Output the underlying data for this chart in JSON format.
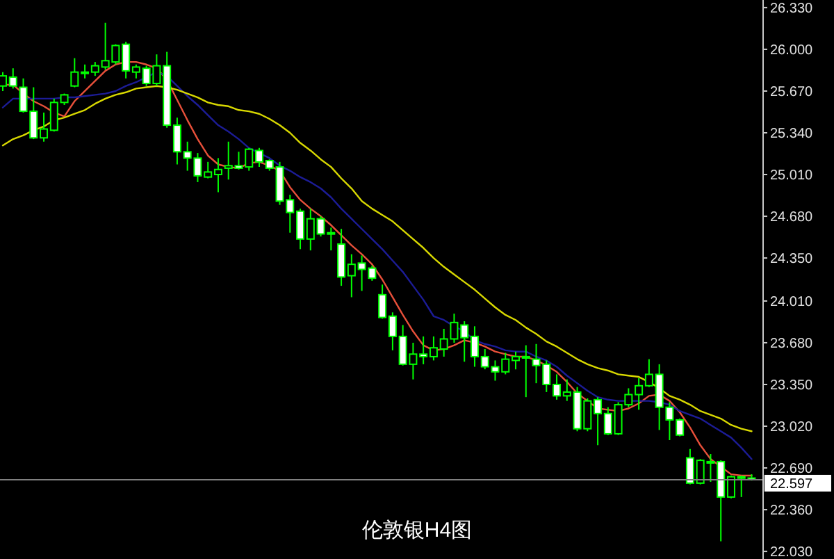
{
  "chart_data": {
    "type": "candlestick",
    "title": "伦敦银H4图",
    "categories": [
      null,
      null,
      null,
      null,
      null,
      null,
      null,
      null,
      null,
      null,
      null,
      null,
      null,
      null,
      null,
      null,
      null,
      null,
      null,
      null,
      null,
      null,
      null,
      null,
      null,
      null,
      null,
      null,
      null,
      null,
      null,
      null,
      null,
      null,
      null,
      null,
      null,
      null,
      null,
      null,
      null,
      null,
      null,
      null,
      null,
      null,
      null,
      null,
      null,
      null,
      null,
      null,
      null,
      null,
      null,
      null,
      null,
      null,
      null,
      null,
      null,
      null,
      null,
      null,
      null,
      null,
      null,
      null,
      null,
      null,
      null,
      null,
      null,
      null
    ],
    "ohlc": [
      [
        25.71,
        25.82,
        25.67,
        25.79
      ],
      [
        25.78,
        25.85,
        25.69,
        25.71
      ],
      [
        25.7,
        25.77,
        25.5,
        25.51
      ],
      [
        25.51,
        25.7,
        25.29,
        25.3
      ],
      [
        25.3,
        25.5,
        25.27,
        25.37
      ],
      [
        25.36,
        25.61,
        25.35,
        25.58
      ],
      [
        25.58,
        25.65,
        25.56,
        25.64
      ],
      [
        25.71,
        25.93,
        25.7,
        25.82
      ],
      [
        25.82,
        25.88,
        25.77,
        25.82
      ],
      [
        25.82,
        25.9,
        25.79,
        25.87
      ],
      [
        25.86,
        26.21,
        25.84,
        25.91
      ],
      [
        25.9,
        26.04,
        25.88,
        26.03
      ],
      [
        26.04,
        26.06,
        25.77,
        25.83
      ],
      [
        25.82,
        25.88,
        25.77,
        25.86
      ],
      [
        25.85,
        25.87,
        25.71,
        25.73
      ],
      [
        25.73,
        25.96,
        25.71,
        25.87
      ],
      [
        25.87,
        25.98,
        25.38,
        25.4
      ],
      [
        25.4,
        25.46,
        25.09,
        25.19
      ],
      [
        25.19,
        25.27,
        25.04,
        25.14
      ],
      [
        25.14,
        25.18,
        24.95,
        25.0
      ],
      [
        24.99,
        25.11,
        24.98,
        25.03
      ],
      [
        25.01,
        25.14,
        24.87,
        25.05
      ],
      [
        25.06,
        25.27,
        24.97,
        25.08
      ],
      [
        25.08,
        25.19,
        25.05,
        25.06
      ],
      [
        25.07,
        25.22,
        25.04,
        25.21
      ],
      [
        25.2,
        25.22,
        25.07,
        25.11
      ],
      [
        25.12,
        25.13,
        25.04,
        25.06
      ],
      [
        25.07,
        25.11,
        24.77,
        24.8
      ],
      [
        24.81,
        24.85,
        24.55,
        24.71
      ],
      [
        24.72,
        24.74,
        24.42,
        24.5
      ],
      [
        24.5,
        24.74,
        24.41,
        24.66
      ],
      [
        24.66,
        24.68,
        24.52,
        24.54
      ],
      [
        24.55,
        24.59,
        24.41,
        24.55
      ],
      [
        24.46,
        24.58,
        24.13,
        24.2
      ],
      [
        24.21,
        24.38,
        24.04,
        24.3
      ],
      [
        24.31,
        24.37,
        24.09,
        24.26
      ],
      [
        24.27,
        24.29,
        24.17,
        24.19
      ],
      [
        24.06,
        24.14,
        23.87,
        23.88
      ],
      [
        23.89,
        23.92,
        23.62,
        23.73
      ],
      [
        23.73,
        23.82,
        23.5,
        23.51
      ],
      [
        23.51,
        23.68,
        23.39,
        23.59
      ],
      [
        23.59,
        23.73,
        23.51,
        23.57
      ],
      [
        23.57,
        23.73,
        23.54,
        23.64
      ],
      [
        23.63,
        23.79,
        23.57,
        23.71
      ],
      [
        23.71,
        23.91,
        23.68,
        23.84
      ],
      [
        23.82,
        23.85,
        23.53,
        23.72
      ],
      [
        23.73,
        23.81,
        23.49,
        23.57
      ],
      [
        23.57,
        23.63,
        23.47,
        23.49
      ],
      [
        23.49,
        23.54,
        23.38,
        23.45
      ],
      [
        23.45,
        23.6,
        23.43,
        23.55
      ],
      [
        23.54,
        23.61,
        23.47,
        23.57
      ],
      [
        23.57,
        23.66,
        23.25,
        23.57
      ],
      [
        23.55,
        23.67,
        23.36,
        23.5
      ],
      [
        23.51,
        23.54,
        23.29,
        23.35
      ],
      [
        23.35,
        23.43,
        23.23,
        23.26
      ],
      [
        23.26,
        23.39,
        23.22,
        23.29
      ],
      [
        23.29,
        23.33,
        22.98,
        23.0
      ],
      [
        23.0,
        23.24,
        22.98,
        23.22
      ],
      [
        23.23,
        23.25,
        22.87,
        23.12
      ],
      [
        23.12,
        23.17,
        22.95,
        22.96
      ],
      [
        22.96,
        23.21,
        22.95,
        23.19
      ],
      [
        23.19,
        23.32,
        23.17,
        23.27
      ],
      [
        23.27,
        23.4,
        23.15,
        23.34
      ],
      [
        23.34,
        23.55,
        23.33,
        23.43
      ],
      [
        23.43,
        23.51,
        22.99,
        23.17
      ],
      [
        23.17,
        23.21,
        22.91,
        23.07
      ],
      [
        23.07,
        23.08,
        22.94,
        22.95
      ],
      [
        22.77,
        22.84,
        22.56,
        22.57
      ],
      [
        22.57,
        22.76,
        22.56,
        22.75
      ],
      [
        22.73,
        22.8,
        22.58,
        22.74
      ],
      [
        22.74,
        22.75,
        22.11,
        22.46
      ],
      [
        22.46,
        22.63,
        22.45,
        22.62
      ],
      [
        22.62,
        22.63,
        22.46,
        22.62
      ],
      [
        22.61,
        22.64,
        22.59,
        22.597
      ]
    ],
    "series": [
      {
        "type": "line",
        "color": "#e8503a",
        "values": [
          25.72,
          25.72,
          25.65,
          25.59,
          25.55,
          25.5,
          25.47,
          25.59,
          25.67,
          25.75,
          25.83,
          25.88,
          25.9,
          25.9,
          25.88,
          25.85,
          25.76,
          25.6,
          25.44,
          25.29,
          25.16,
          25.09,
          25.07,
          25.06,
          25.1,
          25.11,
          25.08,
          25.04,
          24.91,
          24.81,
          24.74,
          24.68,
          24.61,
          24.53,
          24.45,
          24.38,
          24.3,
          24.18,
          24.04,
          23.9,
          23.77,
          23.66,
          23.62,
          23.63,
          23.66,
          23.7,
          23.68,
          23.65,
          23.61,
          23.59,
          23.57,
          23.57,
          23.54,
          23.5,
          23.45,
          23.37,
          23.28,
          23.22,
          23.16,
          23.15,
          23.14,
          23.16,
          23.2,
          23.26,
          23.27,
          23.22,
          23.13,
          23.01,
          22.87,
          22.76,
          22.7,
          22.64,
          22.63,
          22.63
        ]
      },
      {
        "type": "line",
        "color": "#1c1c96",
        "values": [
          25.54,
          25.61,
          25.61,
          25.61,
          25.61,
          25.61,
          25.62,
          25.62,
          25.63,
          25.64,
          25.65,
          25.67,
          25.71,
          25.74,
          25.78,
          25.82,
          25.79,
          25.71,
          25.63,
          25.56,
          25.48,
          25.4,
          25.35,
          25.29,
          25.22,
          25.18,
          25.14,
          25.08,
          25.04,
          24.99,
          24.95,
          24.9,
          24.83,
          24.74,
          24.66,
          24.58,
          24.5,
          24.42,
          24.33,
          24.24,
          24.13,
          24.02,
          23.89,
          23.86,
          23.81,
          23.77,
          23.7,
          23.67,
          23.65,
          23.62,
          23.61,
          23.61,
          23.57,
          23.54,
          23.49,
          23.42,
          23.36,
          23.3,
          23.25,
          23.23,
          23.22,
          23.22,
          23.22,
          23.22,
          23.21,
          23.19,
          23.14,
          23.11,
          23.08,
          23.03,
          22.98,
          22.93,
          22.85,
          22.76
        ]
      },
      {
        "type": "line",
        "color": "#d8d800",
        "values": [
          25.24,
          25.29,
          25.32,
          25.36,
          25.39,
          25.44,
          25.46,
          25.49,
          25.52,
          25.57,
          25.61,
          25.64,
          25.66,
          25.69,
          25.7,
          25.71,
          25.7,
          25.68,
          25.65,
          25.62,
          25.58,
          25.56,
          25.55,
          25.52,
          25.51,
          25.49,
          25.45,
          25.4,
          25.34,
          25.26,
          25.2,
          25.13,
          25.07,
          24.98,
          24.9,
          24.8,
          24.74,
          24.69,
          24.64,
          24.57,
          24.5,
          24.43,
          24.35,
          24.28,
          24.22,
          24.16,
          24.1,
          24.03,
          23.96,
          23.9,
          23.86,
          23.8,
          23.75,
          23.69,
          23.65,
          23.6,
          23.55,
          23.51,
          23.48,
          23.46,
          23.43,
          23.42,
          23.41,
          23.37,
          23.32,
          23.26,
          23.23,
          23.19,
          23.14,
          23.11,
          23.08,
          23.03,
          23.0,
          22.98
        ]
      }
    ],
    "ylim": [
      21.97,
      26.39
    ],
    "yticks": [
      {
        "value": 22.03,
        "label": "22.030"
      },
      {
        "value": 22.36,
        "label": "22.360"
      },
      {
        "value": 22.69,
        "label": "22.690"
      },
      {
        "value": 23.02,
        "label": "23.020"
      },
      {
        "value": 23.35,
        "label": "23.350"
      },
      {
        "value": 23.68,
        "label": "23.680"
      },
      {
        "value": 24.01,
        "label": "24.010"
      },
      {
        "value": 24.35,
        "label": "24.350"
      },
      {
        "value": 24.68,
        "label": "24.680"
      },
      {
        "value": 25.01,
        "label": "25.010"
      },
      {
        "value": 25.34,
        "label": "25.340"
      },
      {
        "value": 25.67,
        "label": "25.670"
      },
      {
        "value": 26.0,
        "label": "26.000"
      },
      {
        "value": 26.33,
        "label": "26.330"
      }
    ],
    "ref_lines": [
      {
        "axis": "y",
        "value": 22.597,
        "label": "22.597",
        "color": "#808080"
      }
    ],
    "tick_labels": "y"
  }
}
